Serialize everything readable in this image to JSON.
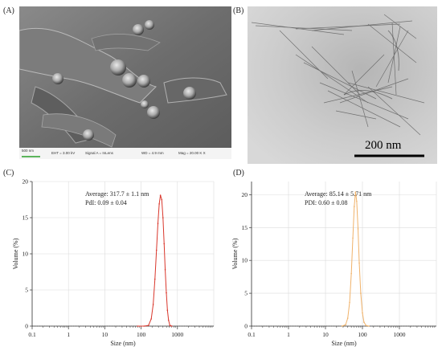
{
  "panels": {
    "a": {
      "letter": "(A)"
    },
    "b": {
      "letter": "(B)"
    },
    "c": {
      "letter": "(C)"
    },
    "d": {
      "letter": "(D)"
    }
  },
  "sem_info": {
    "scale": "500 nm",
    "eht": "EHT = 3.00 kV",
    "signal": "Signal A = InLens",
    "wd": "WD = 4.9 mm",
    "mag": "Mag = 20.00 K X"
  },
  "tem_info": {
    "scale": "200 nm"
  },
  "chart_data": [
    {
      "type": "line",
      "panel": "C",
      "xlabel": "Size (nm)",
      "ylabel": "Volume (%)",
      "xscale": "log",
      "xlim": [
        0.1,
        10000
      ],
      "ylim": [
        0,
        20
      ],
      "x_ticks": [
        "0.1",
        "1",
        "10",
        "100",
        "1000"
      ],
      "y_ticks": [
        "0",
        "5",
        "10",
        "15",
        "20"
      ],
      "grid": true,
      "line_color": "#d9362b",
      "annotation": [
        "Average: 317.7 ± 1.1 nm",
        "PdI: 0.09 ± 0.04"
      ],
      "x": [
        80,
        120,
        160,
        190,
        215,
        240,
        265,
        290,
        315,
        340,
        370,
        400,
        430,
        460,
        495,
        530,
        570,
        620,
        700
      ],
      "y": [
        0,
        0,
        0.1,
        1.0,
        3.0,
        6.5,
        10.5,
        14.2,
        16.9,
        18.1,
        17.5,
        15.0,
        11.4,
        7.8,
        4.6,
        2.2,
        0.8,
        0.1,
        0
      ]
    },
    {
      "type": "line",
      "panel": "D",
      "xlabel": "Size (nm)",
      "ylabel": "Volume (%)",
      "xscale": "log",
      "xlim": [
        0.1,
        10000
      ],
      "ylim": [
        0,
        22
      ],
      "x_ticks": [
        "0.1",
        "1",
        "10",
        "100",
        "1000"
      ],
      "y_ticks": [
        "0",
        "5",
        "10",
        "15",
        "20"
      ],
      "grid": true,
      "line_color": "#f0b26a",
      "annotation": [
        "Average: 85.14 ± 5.71 nm",
        "PDI: 0.60 ± 0.08"
      ],
      "x": [
        28,
        35,
        40,
        45,
        50,
        55,
        60,
        65,
        70,
        76,
        82,
        90,
        100,
        110,
        125,
        150
      ],
      "y": [
        0,
        0.2,
        1.2,
        3.6,
        8.0,
        13.4,
        18.2,
        20.4,
        19.0,
        14.8,
        9.6,
        5.0,
        2.0,
        0.6,
        0.1,
        0
      ]
    }
  ]
}
